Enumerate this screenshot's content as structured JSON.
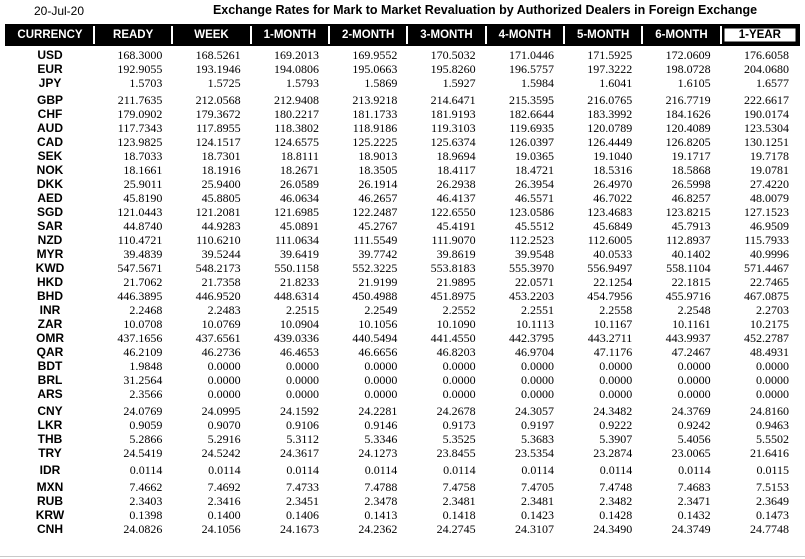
{
  "page": {
    "date": "20-Jul-20",
    "title": "Exchange Rates for Mark to Market Revaluation by Authorized Dealers in Foreign Exchange"
  },
  "colors": {
    "header_bg": "#000000",
    "header_text": "#ffffff",
    "highlight_header_bg": "#ffffff",
    "highlight_header_text": "#000000",
    "body_text": "#000000",
    "page_bg": "#ffffff",
    "bottom_divider": "#c9c9c9"
  },
  "table": {
    "columns": [
      "CURRENCY",
      "READY",
      "WEEK",
      "1-MONTH",
      "2-MONTH",
      "3-MONTH",
      "4-MONTH",
      "5-MONTH",
      "6-MONTH",
      "1-YEAR"
    ],
    "rows": [
      {
        "currency": "USD",
        "gap_before": false,
        "values": [
          "168.3000",
          "168.5261",
          "169.2013",
          "169.9552",
          "170.5032",
          "171.0446",
          "171.5925",
          "172.0609",
          "176.6058"
        ]
      },
      {
        "currency": "EUR",
        "gap_before": false,
        "values": [
          "192.9055",
          "193.1946",
          "194.0806",
          "195.0663",
          "195.8260",
          "196.5757",
          "197.3222",
          "198.0728",
          "204.0680"
        ]
      },
      {
        "currency": "JPY",
        "gap_before": false,
        "values": [
          "1.5703",
          "1.5725",
          "1.5793",
          "1.5869",
          "1.5927",
          "1.5984",
          "1.6041",
          "1.6105",
          "1.6577"
        ]
      },
      {
        "currency": "GBP",
        "gap_before": true,
        "values": [
          "211.7635",
          "212.0568",
          "212.9408",
          "213.9218",
          "214.6471",
          "215.3595",
          "216.0765",
          "216.7719",
          "222.6617"
        ]
      },
      {
        "currency": "CHF",
        "gap_before": false,
        "values": [
          "179.0902",
          "179.3672",
          "180.2217",
          "181.1733",
          "181.9193",
          "182.6644",
          "183.3992",
          "184.1626",
          "190.0174"
        ]
      },
      {
        "currency": "AUD",
        "gap_before": false,
        "values": [
          "117.7343",
          "117.8955",
          "118.3802",
          "118.9186",
          "119.3103",
          "119.6935",
          "120.0789",
          "120.4089",
          "123.5304"
        ]
      },
      {
        "currency": "CAD",
        "gap_before": false,
        "values": [
          "123.9825",
          "124.1517",
          "124.6575",
          "125.2225",
          "125.6374",
          "126.0397",
          "126.4449",
          "126.8205",
          "130.1251"
        ]
      },
      {
        "currency": "SEK",
        "gap_before": false,
        "values": [
          "18.7033",
          "18.7301",
          "18.8111",
          "18.9013",
          "18.9694",
          "19.0365",
          "19.1040",
          "19.1717",
          "19.7178"
        ]
      },
      {
        "currency": "NOK",
        "gap_before": false,
        "values": [
          "18.1661",
          "18.1916",
          "18.2671",
          "18.3505",
          "18.4117",
          "18.4721",
          "18.5316",
          "18.5868",
          "19.0781"
        ]
      },
      {
        "currency": "DKK",
        "gap_before": false,
        "values": [
          "25.9011",
          "25.9400",
          "26.0589",
          "26.1914",
          "26.2938",
          "26.3954",
          "26.4970",
          "26.5998",
          "27.4220"
        ]
      },
      {
        "currency": "AED",
        "gap_before": false,
        "values": [
          "45.8190",
          "45.8805",
          "46.0634",
          "46.2657",
          "46.4137",
          "46.5571",
          "46.7022",
          "46.8257",
          "48.0079"
        ]
      },
      {
        "currency": "SGD",
        "gap_before": false,
        "values": [
          "121.0443",
          "121.2081",
          "121.6985",
          "122.2487",
          "122.6550",
          "123.0586",
          "123.4683",
          "123.8215",
          "127.1523"
        ]
      },
      {
        "currency": "SAR",
        "gap_before": false,
        "values": [
          "44.8740",
          "44.9283",
          "45.0891",
          "45.2767",
          "45.4191",
          "45.5512",
          "45.6849",
          "45.7913",
          "46.9509"
        ]
      },
      {
        "currency": "NZD",
        "gap_before": false,
        "values": [
          "110.4721",
          "110.6210",
          "111.0634",
          "111.5549",
          "111.9070",
          "112.2523",
          "112.6005",
          "112.8937",
          "115.7933"
        ]
      },
      {
        "currency": "MYR",
        "gap_before": false,
        "values": [
          "39.4839",
          "39.5244",
          "39.6419",
          "39.7742",
          "39.8619",
          "39.9548",
          "40.0533",
          "40.1402",
          "40.9996"
        ]
      },
      {
        "currency": "KWD",
        "gap_before": false,
        "values": [
          "547.5671",
          "548.2173",
          "550.1158",
          "552.3225",
          "553.8183",
          "555.3970",
          "556.9497",
          "558.1104",
          "571.4467"
        ]
      },
      {
        "currency": "HKD",
        "gap_before": false,
        "values": [
          "21.7062",
          "21.7358",
          "21.8233",
          "21.9199",
          "21.9895",
          "22.0571",
          "22.1254",
          "22.1815",
          "22.7465"
        ]
      },
      {
        "currency": "BHD",
        "gap_before": false,
        "values": [
          "446.3895",
          "446.9520",
          "448.6314",
          "450.4988",
          "451.8975",
          "453.2203",
          "454.7956",
          "455.9716",
          "467.0875"
        ]
      },
      {
        "currency": "INR",
        "gap_before": false,
        "values": [
          "2.2468",
          "2.2483",
          "2.2515",
          "2.2549",
          "2.2552",
          "2.2551",
          "2.2558",
          "2.2548",
          "2.2703"
        ]
      },
      {
        "currency": "ZAR",
        "gap_before": false,
        "values": [
          "10.0708",
          "10.0769",
          "10.0904",
          "10.1056",
          "10.1090",
          "10.1113",
          "10.1167",
          "10.1161",
          "10.2175"
        ]
      },
      {
        "currency": "OMR",
        "gap_before": false,
        "values": [
          "437.1656",
          "437.6561",
          "439.0336",
          "440.5494",
          "441.4550",
          "442.3795",
          "443.2711",
          "443.9937",
          "452.2787"
        ]
      },
      {
        "currency": "QAR",
        "gap_before": false,
        "values": [
          "46.2109",
          "46.2736",
          "46.4653",
          "46.6656",
          "46.8203",
          "46.9704",
          "47.1176",
          "47.2467",
          "48.4931"
        ]
      },
      {
        "currency": "BDT",
        "gap_before": false,
        "values": [
          "1.9848",
          "0.0000",
          "0.0000",
          "0.0000",
          "0.0000",
          "0.0000",
          "0.0000",
          "0.0000",
          "0.0000"
        ]
      },
      {
        "currency": "BRL",
        "gap_before": false,
        "values": [
          "31.2564",
          "0.0000",
          "0.0000",
          "0.0000",
          "0.0000",
          "0.0000",
          "0.0000",
          "0.0000",
          "0.0000"
        ]
      },
      {
        "currency": "ARS",
        "gap_before": false,
        "values": [
          "2.3566",
          "0.0000",
          "0.0000",
          "0.0000",
          "0.0000",
          "0.0000",
          "0.0000",
          "0.0000",
          "0.0000"
        ]
      },
      {
        "currency": "CNY",
        "gap_before": true,
        "values": [
          "24.0769",
          "24.0995",
          "24.1592",
          "24.2281",
          "24.2678",
          "24.3057",
          "24.3482",
          "24.3769",
          "24.8160"
        ]
      },
      {
        "currency": "LKR",
        "gap_before": false,
        "values": [
          "0.9059",
          "0.9070",
          "0.9106",
          "0.9146",
          "0.9173",
          "0.9197",
          "0.9222",
          "0.9242",
          "0.9463"
        ]
      },
      {
        "currency": "THB",
        "gap_before": false,
        "values": [
          "5.2866",
          "5.2916",
          "5.3112",
          "5.3346",
          "5.3525",
          "5.3683",
          "5.3907",
          "5.4056",
          "5.5502"
        ]
      },
      {
        "currency": "TRY",
        "gap_before": false,
        "values": [
          "24.5419",
          "24.5242",
          "24.3617",
          "24.1273",
          "23.8455",
          "23.5354",
          "23.2874",
          "23.0065",
          "21.6416"
        ]
      },
      {
        "currency": "IDR",
        "gap_before": true,
        "values": [
          "0.0114",
          "0.0114",
          "0.0114",
          "0.0114",
          "0.0114",
          "0.0114",
          "0.0114",
          "0.0114",
          "0.0115"
        ]
      },
      {
        "currency": "MXN",
        "gap_before": true,
        "values": [
          "7.4662",
          "7.4692",
          "7.4733",
          "7.4788",
          "7.4758",
          "7.4705",
          "7.4748",
          "7.4683",
          "7.5153"
        ]
      },
      {
        "currency": "RUB",
        "gap_before": false,
        "values": [
          "2.3403",
          "2.3416",
          "2.3451",
          "2.3478",
          "2.3481",
          "2.3481",
          "2.3482",
          "2.3471",
          "2.3649"
        ]
      },
      {
        "currency": "KRW",
        "gap_before": false,
        "values": [
          "0.1398",
          "0.1400",
          "0.1406",
          "0.1413",
          "0.1418",
          "0.1423",
          "0.1428",
          "0.1432",
          "0.1473"
        ]
      },
      {
        "currency": "CNH",
        "gap_before": false,
        "values": [
          "24.0826",
          "24.1056",
          "24.1673",
          "24.2362",
          "24.2745",
          "24.3107",
          "24.3490",
          "24.3749",
          "24.7748"
        ]
      }
    ]
  }
}
